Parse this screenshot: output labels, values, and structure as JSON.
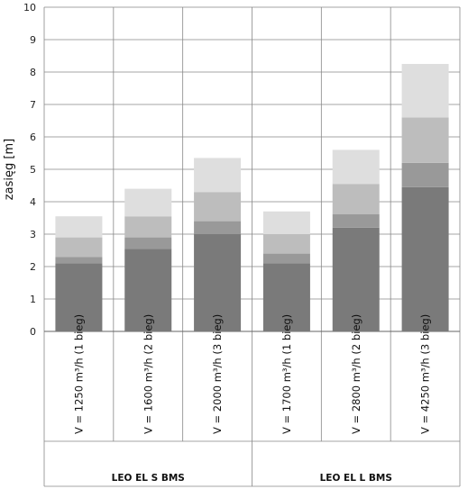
{
  "chart_data": {
    "type": "bar",
    "stacked": true,
    "ylabel": "zasięg [m]",
    "ylim": [
      0,
      10
    ],
    "yticks": [
      "0",
      "1",
      "2",
      "3",
      "4",
      "5",
      "6",
      "7",
      "8",
      "9",
      "10"
    ],
    "grid": true,
    "categories": [
      "V = 1250 m³/h (1 bieg)",
      "V = 1600 m³/h (2 bieg)",
      "V = 2000 m³/h (3 bieg)",
      "V = 1700 m³/h (1 bieg)",
      "V = 2800 m³/h (2 bieg)",
      "V = 4250 m³/h (3 bieg)"
    ],
    "groups": [
      {
        "label": "LEO EL S BMS",
        "span": [
          0,
          2
        ]
      },
      {
        "label": "LEO EL L BMS",
        "span": [
          3,
          5
        ]
      }
    ],
    "series": [
      {
        "values": [
          2.1,
          2.55,
          3.0,
          2.1,
          3.2,
          4.45
        ],
        "color": "#7a7a7a"
      },
      {
        "values": [
          0.2,
          0.35,
          0.4,
          0.3,
          0.42,
          0.75
        ],
        "color": "#999999"
      },
      {
        "values": [
          0.6,
          0.65,
          0.9,
          0.6,
          0.93,
          1.4
        ],
        "color": "#bdbdbd"
      },
      {
        "values": [
          0.65,
          0.85,
          1.05,
          0.7,
          1.05,
          1.65
        ],
        "color": "#dedede"
      }
    ]
  }
}
